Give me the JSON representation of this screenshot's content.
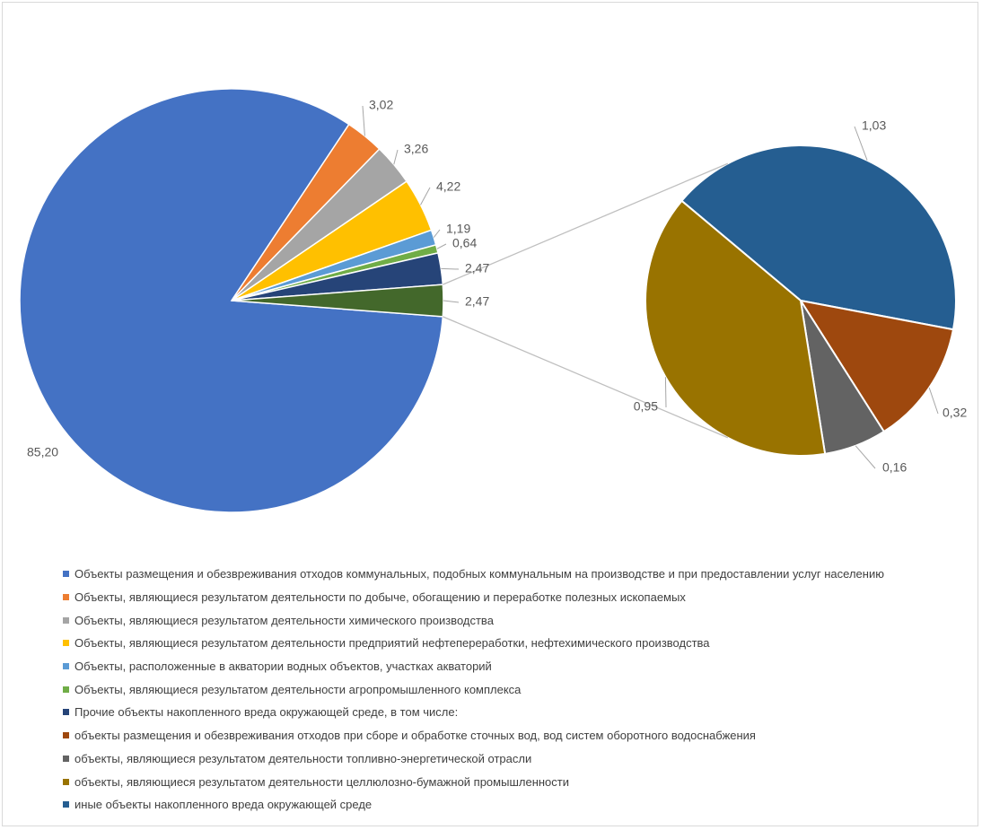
{
  "chart_data": {
    "type": "pie",
    "subtype": "bar-of-pie",
    "main_pie": {
      "slices": [
        {
          "label": "Объекты размещения и обезвреживания отходов коммунальных, подобных коммунальным на производстве и при предоставлении услуг населению",
          "value": 85.2,
          "value_label": "85,20",
          "color": "#4472c4"
        },
        {
          "label": "Объекты, являющиеся результатом деятельности по добыче, обогащению и переработке полезных ископаемых",
          "value": 3.02,
          "value_label": "3,02",
          "color": "#ed7d31"
        },
        {
          "label": "Объекты, являющиеся результатом деятельности химического производства",
          "value": 3.26,
          "value_label": "3,26",
          "color": "#a5a5a5"
        },
        {
          "label": "Объекты, являющиеся результатом деятельности предприятий нефтепереработки, нефтехимического производства",
          "value": 4.22,
          "value_label": "4,22",
          "color": "#ffc000"
        },
        {
          "label": "Объекты, расположенные в акватории водных объектов, участках акваторий",
          "value": 1.19,
          "value_label": "1,19",
          "color": "#5b9bd5"
        },
        {
          "label": "Объекты, являющиеся результатом деятельности агропромышленного комплекса",
          "value": 0.64,
          "value_label": "0,64",
          "color": "#70ad47"
        },
        {
          "label": "Прочие объекты накопленного вреда окружающей среде, в том числе:",
          "value": 2.47,
          "value_label": "2,47",
          "color": "#264478"
        },
        {
          "label": "",
          "value": 2.47,
          "value_label": "2,47",
          "color": "#43682b"
        }
      ]
    },
    "secondary_pie": {
      "slices": [
        {
          "label": "иные объекты накопленного вреда окружающей среде",
          "value": 1.03,
          "value_label": "1,03",
          "color": "#255e91"
        },
        {
          "label": "объекты размещения и обезвреживания отходов при сборе и обработке сточных вод, вод систем оборотного водоснабжения",
          "value": 0.32,
          "value_label": "0,32",
          "color": "#9e480e"
        },
        {
          "label": "объекты, являющиеся результатом деятельности топливно-энергетической отрасли",
          "value": 0.16,
          "value_label": "0,16",
          "color": "#636363"
        },
        {
          "label": "объекты, являющиеся результатом деятельности целлюлозно-бумажной промышленности",
          "value": 0.95,
          "value_label": "0,95",
          "color": "#997300"
        }
      ]
    },
    "legend": [
      {
        "label": "Объекты размещения и обезвреживания отходов коммунальных, подобных коммунальным на производстве и при предоставлении услуг населению",
        "color": "#4472c4"
      },
      {
        "label": "Объекты, являющиеся результатом деятельности по добыче, обогащению и переработке полезных ископаемых",
        "color": "#ed7d31"
      },
      {
        "label": "Объекты, являющиеся результатом деятельности химического производства",
        "color": "#a5a5a5"
      },
      {
        "label": "Объекты, являющиеся результатом деятельности предприятий нефтепереработки, нефтехимического производства",
        "color": "#ffc000"
      },
      {
        "label": "Объекты, расположенные в акватории водных объектов, участках акваторий",
        "color": "#5b9bd5"
      },
      {
        "label": "Объекты, являющиеся результатом деятельности агропромышленного комплекса",
        "color": "#70ad47"
      },
      {
        "label": "Прочие объекты накопленного вреда окружающей среде, в том числе:",
        "color": "#264478"
      },
      {
        "label": "объекты размещения и обезвреживания отходов при сборе и обработке сточных вод, вод систем оборотного водоснабжения",
        "color": "#9e480e"
      },
      {
        "label": "объекты, являющиеся результатом деятельности топливно-энергетической отрасли",
        "color": "#636363"
      },
      {
        "label": "объекты, являющиеся результатом деятельности целлюлозно-бумажной промышленности",
        "color": "#997300"
      },
      {
        "label": "иные объекты накопленного вреда окружающей среде",
        "color": "#255e91"
      }
    ],
    "legend_position": "bottom",
    "title": ""
  }
}
